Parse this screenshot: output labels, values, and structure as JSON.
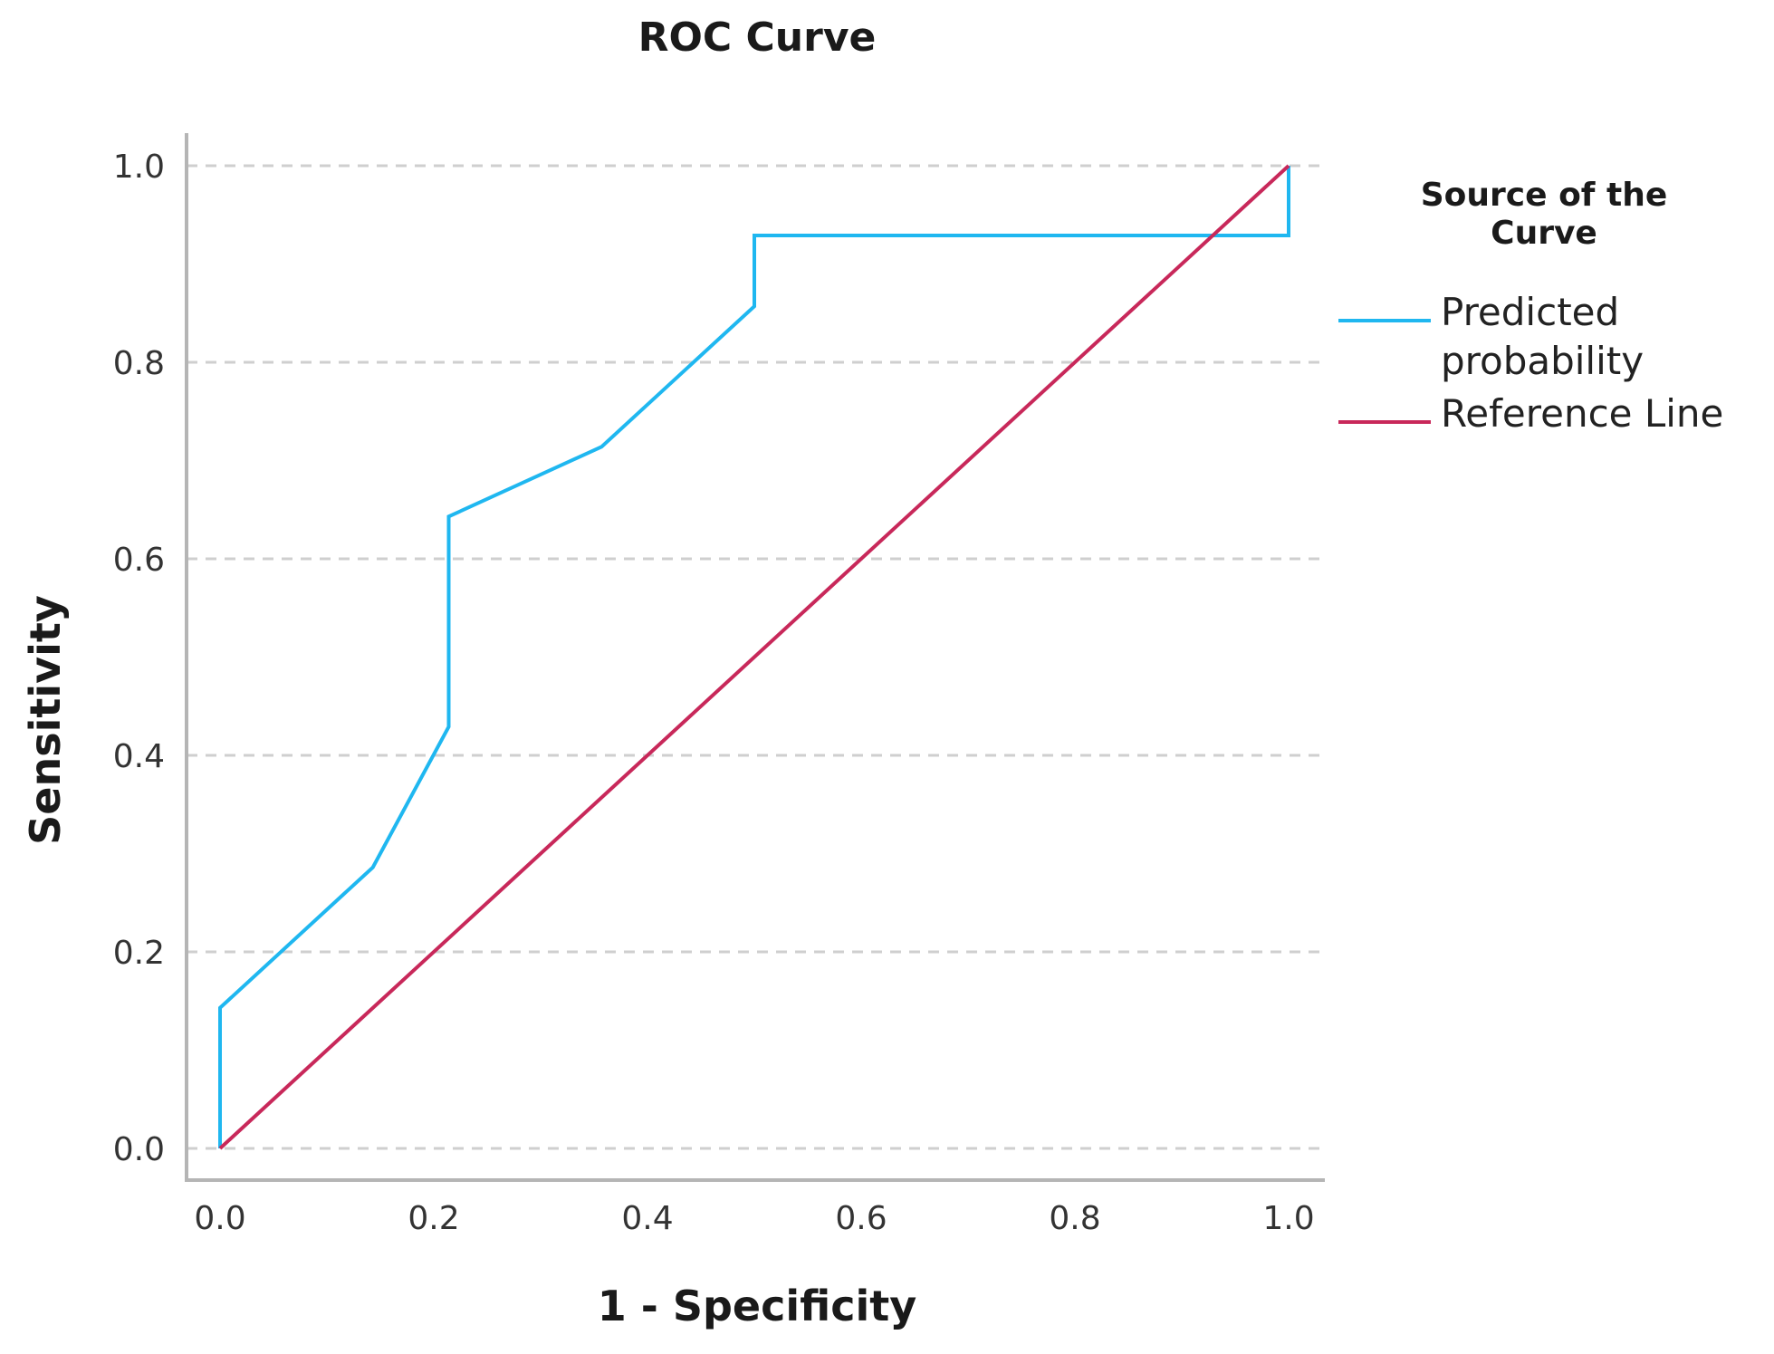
{
  "chart_data": {
    "type": "line",
    "title": "ROC Curve",
    "xlabel": "1 - Specificity",
    "ylabel": "Sensitivity",
    "xlim": [
      0,
      1
    ],
    "ylim": [
      0,
      1
    ],
    "x_ticks": [
      "0.0",
      "0.2",
      "0.4",
      "0.6",
      "0.8",
      "1.0"
    ],
    "y_ticks": [
      "0.0",
      "0.2",
      "0.4",
      "0.6",
      "0.8",
      "1.0"
    ],
    "grid": "horizontal dashed",
    "legend": {
      "title_lines": [
        "Source of the",
        "Curve"
      ],
      "placement": "right"
    },
    "series": [
      {
        "name": "Predicted probability",
        "name_lines": [
          "Predicted",
          "probability"
        ],
        "color": "#1fb7f0",
        "x": [
          0.0,
          0.0,
          0.143,
          0.214,
          0.214,
          0.357,
          0.5,
          0.5,
          1.0,
          1.0
        ],
        "y": [
          0.0,
          0.143,
          0.286,
          0.429,
          0.643,
          0.714,
          0.857,
          0.929,
          0.929,
          1.0
        ]
      },
      {
        "name": "Reference Line",
        "name_lines": [
          "Reference Line"
        ],
        "color": "#c8285a",
        "x": [
          0.0,
          1.0
        ],
        "y": [
          0.0,
          1.0
        ]
      }
    ]
  }
}
